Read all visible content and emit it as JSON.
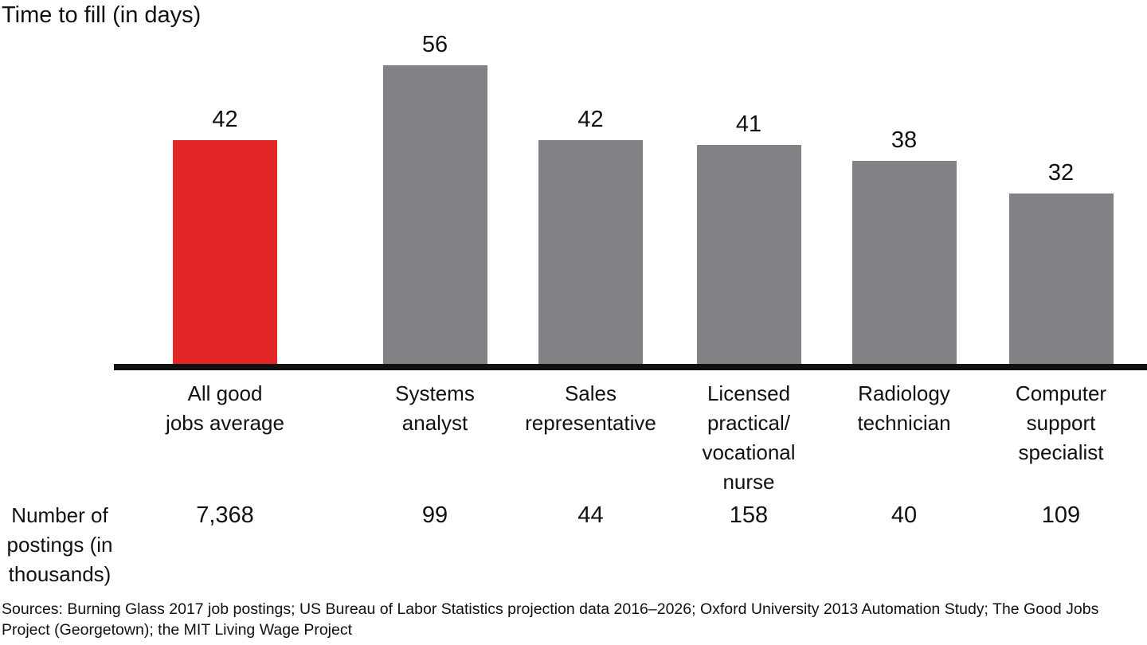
{
  "chart_data": {
    "type": "bar",
    "title": "Time to fill (in days)",
    "categories": [
      "All good\njobs average",
      "Systems\nanalyst",
      "Sales\nrepresentative",
      "Licensed\npractical/\nvocational\nnurse",
      "Radiology\ntechnician",
      "Computer\nsupport\nspecialist"
    ],
    "values": [
      42,
      56,
      42,
      41,
      38,
      32
    ],
    "value_labels": [
      "42",
      "56",
      "42",
      "41",
      "38",
      "32"
    ],
    "highlight_index": 0,
    "colors": {
      "highlight_bar": "#e22726",
      "default_bar": "#808285",
      "axis": "#111111",
      "text": "#111111"
    },
    "xlabel": "",
    "ylabel": "",
    "ylim": [
      0,
      60
    ],
    "grid": false,
    "legend": false,
    "postings_row": {
      "label": "Number of\npostings (in\nthousands)",
      "values": [
        "7,368",
        "99",
        "44",
        "158",
        "40",
        "109"
      ],
      "values_numeric": [
        7368,
        99,
        44,
        158,
        40,
        109
      ]
    }
  },
  "sources": "Sources: Burning Glass 2017 job postings; US Bureau of Labor Statistics projection data 2016–2026; Oxford University 2013 Automation Study; The Good Jobs Project (Georgetown); the MIT Living Wage Project"
}
